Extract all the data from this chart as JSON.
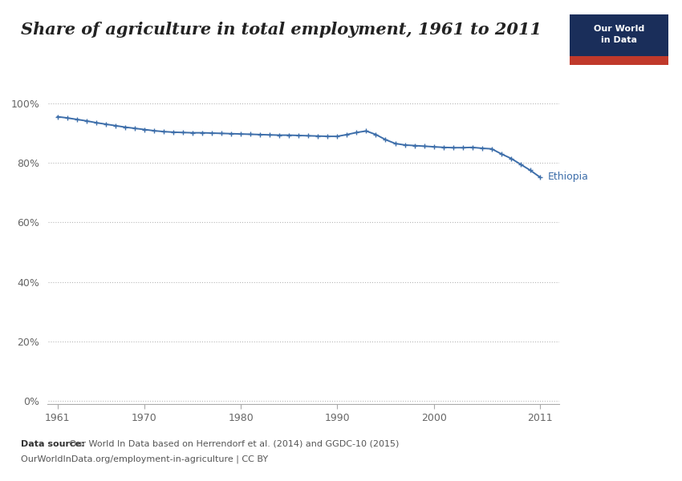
{
  "title": "Share of agriculture in total employment, 1961 to 2011",
  "line_color": "#3d6eaa",
  "background_color": "#ffffff",
  "grid_color": "#b0b0b0",
  "tick_color": "#666666",
  "ylabel_values": [
    0,
    20,
    40,
    60,
    80,
    100
  ],
  "xticks": [
    1961,
    1970,
    1980,
    1990,
    2000,
    2011
  ],
  "xlim": [
    1960,
    2013
  ],
  "ylim": [
    -1,
    104
  ],
  "country_label": "Ethiopia",
  "datasource_bold": "Data source:",
  "datasource_line1": " Our World In Data based on Herrendorf et al. (2014) and GGDC-10 (2015)",
  "datasource_line2": "OurWorldInData.org/employment-in-agriculture | CC BY",
  "owid_box_color": "#1a2e5a",
  "owid_box_red": "#c0392b",
  "ethiopia_data": {
    "years": [
      1961,
      1962,
      1963,
      1964,
      1965,
      1966,
      1967,
      1968,
      1969,
      1970,
      1971,
      1972,
      1973,
      1974,
      1975,
      1976,
      1977,
      1978,
      1979,
      1980,
      1981,
      1982,
      1983,
      1984,
      1985,
      1986,
      1987,
      1988,
      1989,
      1990,
      1991,
      1992,
      1993,
      1994,
      1995,
      1996,
      1997,
      1998,
      1999,
      2000,
      2001,
      2002,
      2003,
      2004,
      2005,
      2006,
      2007,
      2008,
      2009,
      2010,
      2011
    ],
    "values": [
      95.5,
      95.1,
      94.6,
      94.1,
      93.5,
      93.0,
      92.5,
      92.0,
      91.6,
      91.2,
      90.8,
      90.5,
      90.3,
      90.2,
      90.1,
      90.1,
      90.0,
      89.9,
      89.8,
      89.7,
      89.6,
      89.5,
      89.4,
      89.3,
      89.3,
      89.2,
      89.1,
      89.0,
      88.9,
      88.9,
      89.5,
      90.2,
      90.7,
      89.5,
      87.8,
      86.5,
      86.0,
      85.8,
      85.6,
      85.4,
      85.2,
      85.1,
      85.1,
      85.2,
      84.9,
      84.7,
      83.0,
      81.5,
      79.5,
      77.5,
      75.2
    ]
  }
}
